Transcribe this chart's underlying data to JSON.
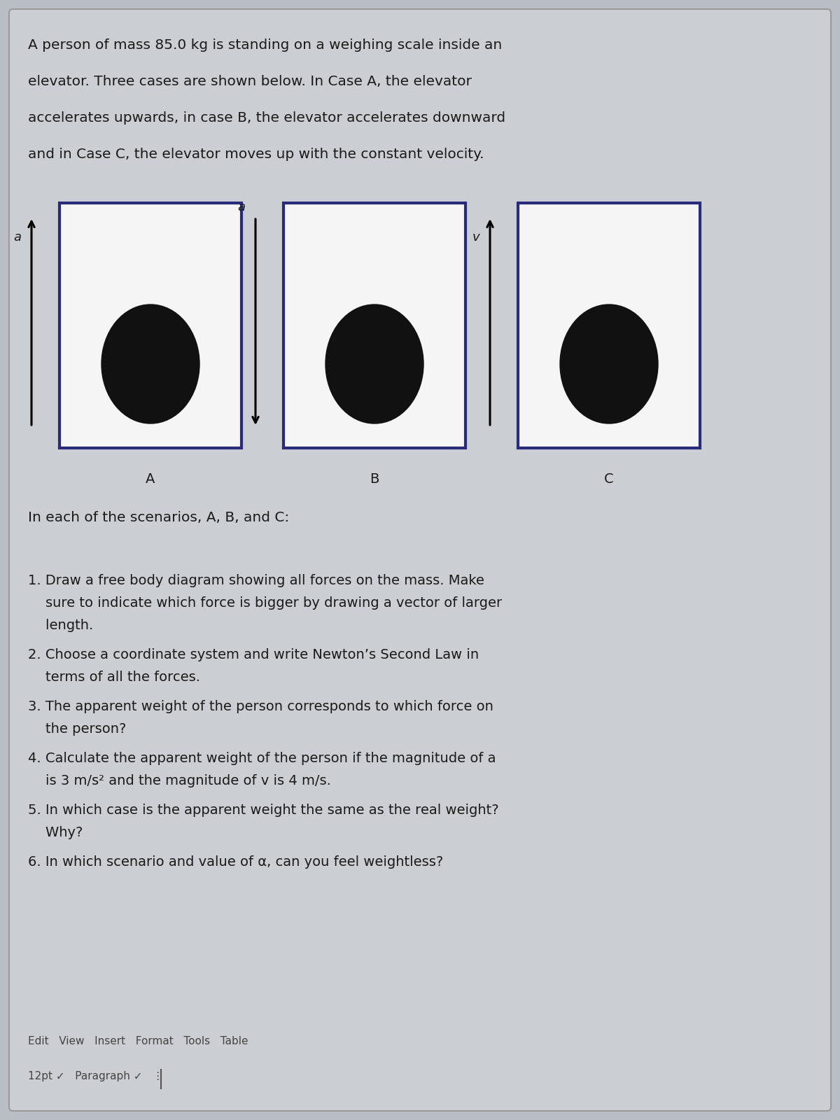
{
  "background_color": "#b8bec4",
  "card_color": "#cbcfd4",
  "text_color": "#1a1a1a",
  "title_text": "A person of mass 85.0 kg is standing on a weighing scale inside an\nelevator. Three cases are shown below. In Case A, the elevator\naccelerates upwards, in case B, the elevator accelerates downward\nand in Case C, the elevator moves up with the constant velocity.",
  "intro_fontsize": 14.5,
  "elevator_border_color": "#2a2a7a",
  "elevator_fill": "#f5f5f5",
  "person_color": "#111111",
  "cases": [
    {
      "label": "A",
      "arrow_dir": "up",
      "arrow_label": "a"
    },
    {
      "label": "B",
      "arrow_dir": "down",
      "arrow_label": "a"
    },
    {
      "label": "C",
      "arrow_dir": "up",
      "arrow_label": "v"
    }
  ],
  "scenario_header": "In each of the scenarios, A, B, and C:",
  "q1": "1. Draw a free body diagram showing all forces on the mass. Make",
  "q1b": "    sure to indicate which force is bigger by drawing a vector of larger",
  "q1c": "    length.",
  "q2": "2. Choose a coordinate system and write Newton’s Second Law in",
  "q2b": "    terms of all the forces.",
  "q3": "3. The apparent weight of the person corresponds to which force on",
  "q3b": "    the person?",
  "q4": "4. Calculate the apparent weight of the person if the magnitude of a",
  "q4b": "    is 3 m/s² and the magnitude of v is 4 m/s.",
  "q5": "5. In which case is the apparent weight the same as the real weight?",
  "q5b": "    Why?",
  "q6": "6. In which scenario and value of α, can you feel weightless?",
  "footer_text": "Edit   View   Insert   Format   Tools   Table",
  "footer_text2": "12pt ✓   Paragraph ✓   ⋮",
  "question_fontsize": 14.0,
  "scenario_fontsize": 14.5
}
